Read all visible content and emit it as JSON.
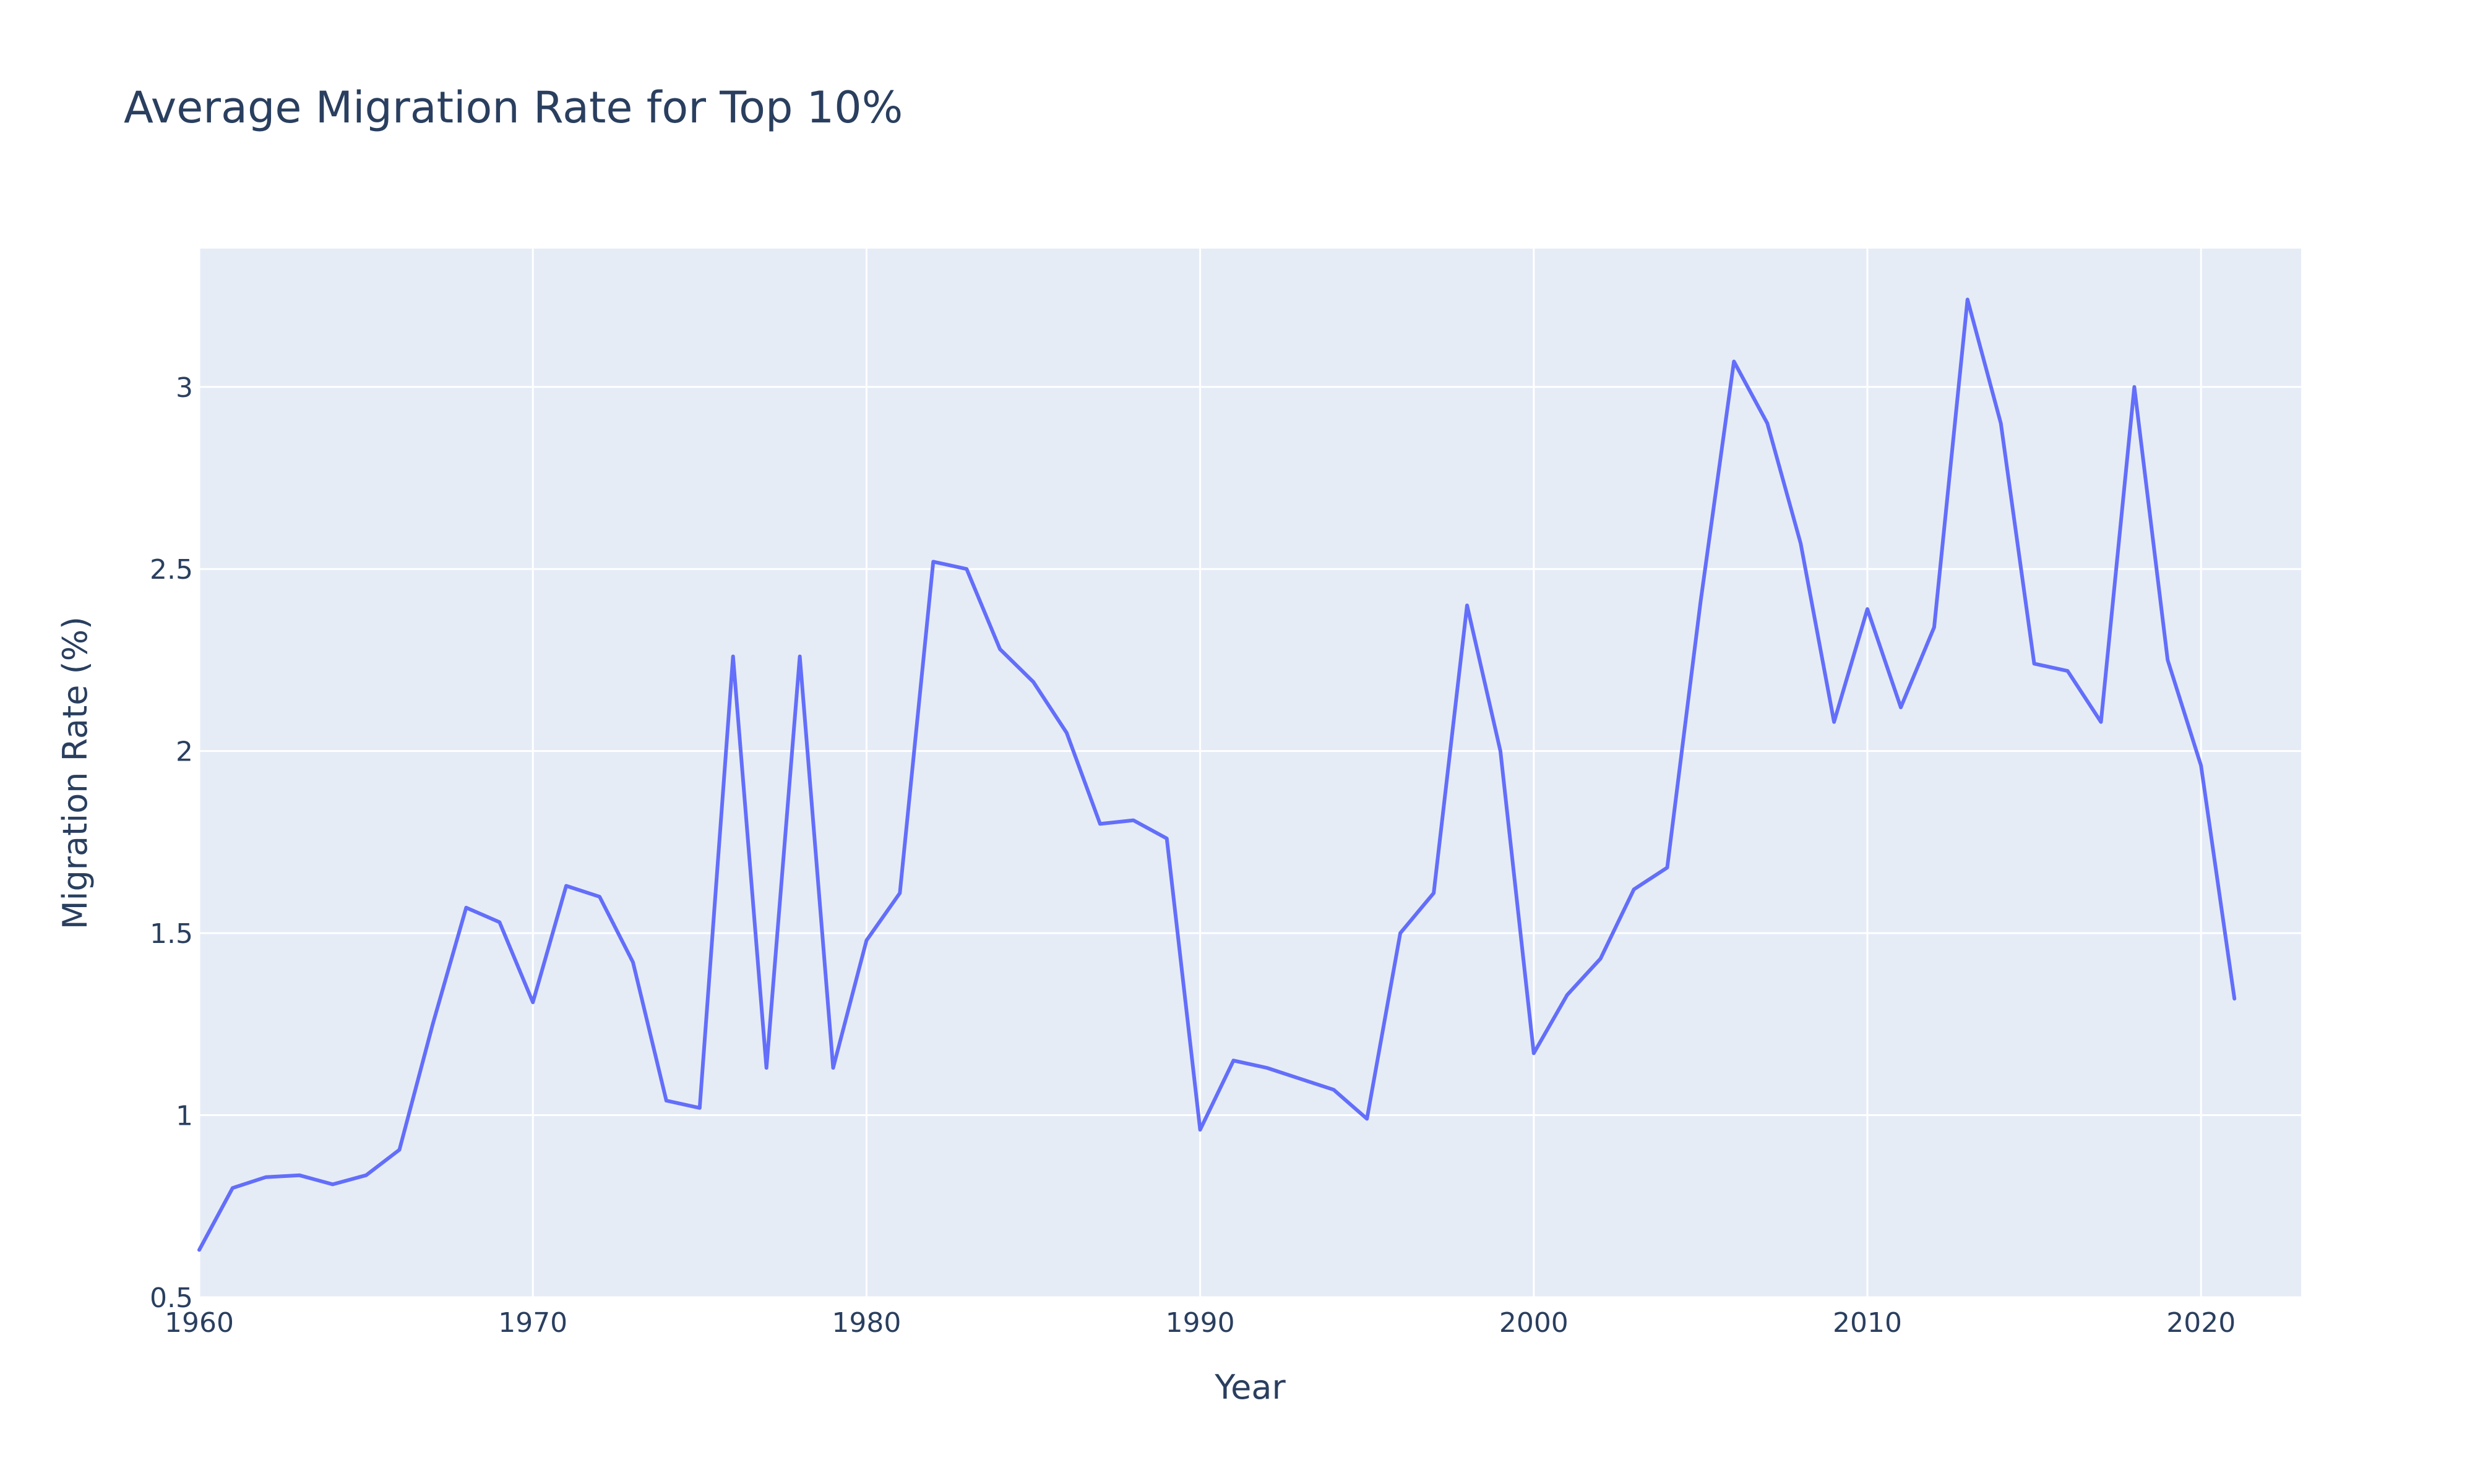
{
  "chart_data": {
    "type": "line",
    "title": "Average Migration Rate for Top 10%",
    "xlabel": "Year",
    "ylabel": "Migration Rate (%)",
    "xlim": [
      1960,
      2023
    ],
    "ylim": [
      0.5,
      3.38
    ],
    "xticks": [
      1960,
      1970,
      1980,
      1990,
      2000,
      2010,
      2020
    ],
    "xtick_labels": [
      "1960",
      "1970",
      "1980",
      "1990",
      "2000",
      "2010",
      "2020"
    ],
    "yticks": [
      0.5,
      1,
      1.5,
      2,
      2.5,
      3
    ],
    "ytick_labels": [
      "0.5",
      "1",
      "1.5",
      "2",
      "2.5",
      "3"
    ],
    "grid": true,
    "colors": {
      "line": "#636efa",
      "plot_background": "#e5ecf6",
      "grid": "#ffffff",
      "text": "#2a3f5f"
    },
    "series": [
      {
        "x": [
          1960,
          1961,
          1962,
          1963,
          1964,
          1965,
          1966,
          1967,
          1968,
          1969,
          1970,
          1971,
          1972,
          1973,
          1974,
          1975,
          1976,
          1977,
          1978,
          1979,
          1980,
          1981,
          1982,
          1983,
          1984,
          1985,
          1986,
          1987,
          1988,
          1989,
          1990,
          1991,
          1992,
          1993,
          1994,
          1995,
          1996,
          1997,
          1998,
          1999,
          2000,
          2001,
          2002,
          2003,
          2004,
          2005,
          2006,
          2007,
          2008,
          2009,
          2010,
          2011,
          2012,
          2013,
          2014,
          2015,
          2016,
          2017,
          2018,
          2019,
          2020,
          2021
        ],
        "y": [
          0.63,
          0.8,
          0.83,
          0.835,
          0.81,
          0.835,
          0.905,
          1.25,
          1.57,
          1.53,
          1.31,
          1.63,
          1.6,
          1.42,
          1.04,
          1.02,
          2.26,
          1.13,
          2.26,
          1.13,
          1.48,
          1.61,
          2.52,
          2.5,
          2.28,
          2.19,
          2.05,
          1.8,
          1.81,
          1.76,
          0.96,
          1.15,
          1.13,
          1.1,
          1.07,
          0.99,
          1.5,
          1.61,
          2.4,
          2.0,
          1.17,
          1.33,
          1.43,
          1.62,
          1.68,
          2.41,
          3.07,
          2.9,
          2.57,
          2.08,
          2.39,
          2.12,
          2.34,
          3.24,
          2.9,
          2.24,
          2.22,
          2.08,
          3.0,
          2.25,
          1.96,
          1.32
        ]
      }
    ]
  }
}
